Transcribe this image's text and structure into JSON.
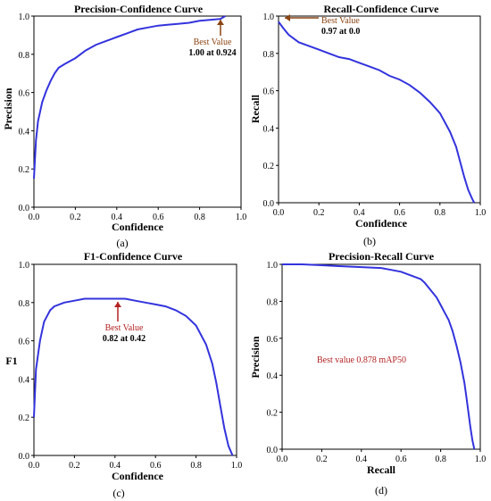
{
  "chart_data": [
    {
      "type": "line",
      "title": "Precision-Confidence Curve",
      "xlabel": "Confidence",
      "ylabel": "Precision",
      "panel_label": "(a)",
      "xlim": [
        0,
        1
      ],
      "ylim": [
        0,
        1
      ],
      "xticks": [
        "0.0",
        "0.2",
        "0.4",
        "0.6",
        "0.8",
        "1.0"
      ],
      "yticks": [
        "0.0",
        "0.2",
        "0.4",
        "0.6",
        "0.8",
        "1.0"
      ],
      "grid": false,
      "series": [
        {
          "color": "#3333dd",
          "x": [
            0.0,
            0.01,
            0.02,
            0.04,
            0.06,
            0.08,
            0.1,
            0.12,
            0.15,
            0.2,
            0.25,
            0.3,
            0.35,
            0.4,
            0.45,
            0.5,
            0.55,
            0.6,
            0.65,
            0.7,
            0.75,
            0.8,
            0.85,
            0.9,
            0.924
          ],
          "y": [
            0.15,
            0.35,
            0.45,
            0.55,
            0.61,
            0.66,
            0.7,
            0.73,
            0.75,
            0.78,
            0.82,
            0.85,
            0.87,
            0.89,
            0.91,
            0.93,
            0.94,
            0.95,
            0.955,
            0.96,
            0.965,
            0.975,
            0.98,
            0.985,
            1.0
          ]
        }
      ],
      "annotation": {
        "line1": "Best Value",
        "line2": "1.00 at 0.924",
        "x": 0.924,
        "y": 1.0,
        "color": "#8b4513"
      }
    },
    {
      "type": "line",
      "title": "Recall-Confidence Curve",
      "xlabel": "Confidence",
      "ylabel": "Recall",
      "panel_label": "(b)",
      "xlim": [
        0,
        1
      ],
      "ylim": [
        0,
        1
      ],
      "xticks": [
        "0.0",
        "0.2",
        "0.4",
        "0.6",
        "0.8",
        "1.0"
      ],
      "yticks": [
        "0.0",
        "0.2",
        "0.4",
        "0.6",
        "0.8",
        "1.0"
      ],
      "grid": false,
      "series": [
        {
          "color": "#3333dd",
          "x": [
            0.0,
            0.02,
            0.05,
            0.1,
            0.15,
            0.2,
            0.25,
            0.3,
            0.35,
            0.4,
            0.45,
            0.5,
            0.55,
            0.6,
            0.65,
            0.7,
            0.75,
            0.8,
            0.85,
            0.88,
            0.9,
            0.92,
            0.94,
            0.96,
            0.97
          ],
          "y": [
            0.97,
            0.94,
            0.9,
            0.86,
            0.84,
            0.82,
            0.8,
            0.78,
            0.77,
            0.75,
            0.73,
            0.71,
            0.68,
            0.66,
            0.63,
            0.59,
            0.54,
            0.48,
            0.38,
            0.3,
            0.22,
            0.14,
            0.07,
            0.02,
            0.0
          ]
        }
      ],
      "annotation": {
        "line1": "Best Value",
        "line2": "0.97 at 0.0",
        "x": 0.0,
        "y": 0.97,
        "color": "#8b4513"
      }
    },
    {
      "type": "line",
      "title": "F1-Confidence Curve",
      "xlabel": "Confidence",
      "ylabel": "F1",
      "panel_label": "(c)",
      "xlim": [
        0,
        1
      ],
      "ylim": [
        0,
        1
      ],
      "xticks": [
        "0.0",
        "0.2",
        "0.4",
        "0.6",
        "0.8",
        "1.0"
      ],
      "yticks": [
        "0.0",
        "0.2",
        "0.4",
        "0.6",
        "0.8",
        "1.0"
      ],
      "grid": false,
      "series": [
        {
          "color": "#3333dd",
          "x": [
            0.0,
            0.01,
            0.03,
            0.05,
            0.08,
            0.1,
            0.15,
            0.2,
            0.25,
            0.3,
            0.35,
            0.4,
            0.45,
            0.5,
            0.55,
            0.6,
            0.65,
            0.7,
            0.75,
            0.8,
            0.85,
            0.88,
            0.9,
            0.92,
            0.94,
            0.96,
            0.98
          ],
          "y": [
            0.2,
            0.45,
            0.6,
            0.7,
            0.76,
            0.78,
            0.8,
            0.81,
            0.82,
            0.82,
            0.82,
            0.82,
            0.82,
            0.81,
            0.8,
            0.79,
            0.78,
            0.76,
            0.73,
            0.68,
            0.58,
            0.48,
            0.38,
            0.26,
            0.14,
            0.05,
            0.0
          ]
        }
      ],
      "annotation": {
        "line1": "Best Value",
        "line2": "0.82 at 0.42",
        "x": 0.42,
        "y": 0.82,
        "color": "#b22222"
      }
    },
    {
      "type": "line",
      "title": "Precision-Recall Curve",
      "xlabel": "Recall",
      "ylabel": "Precision",
      "panel_label": "(d)",
      "xlim": [
        0,
        1
      ],
      "ylim": [
        0,
        1
      ],
      "xticks": [
        "0.0",
        "0.2",
        "0.4",
        "0.6",
        "0.8",
        "1.0"
      ],
      "yticks": [
        "0.0",
        "0.2",
        "0.4",
        "0.6",
        "0.8",
        "1.0"
      ],
      "grid": false,
      "series": [
        {
          "color": "#3333dd",
          "x": [
            0.0,
            0.1,
            0.2,
            0.3,
            0.4,
            0.5,
            0.55,
            0.6,
            0.65,
            0.7,
            0.72,
            0.75,
            0.78,
            0.8,
            0.82,
            0.84,
            0.86,
            0.88,
            0.9,
            0.92,
            0.93,
            0.94,
            0.95,
            0.96,
            0.97
          ],
          "y": [
            1.0,
            1.0,
            0.995,
            0.99,
            0.985,
            0.98,
            0.97,
            0.96,
            0.94,
            0.92,
            0.9,
            0.86,
            0.82,
            0.78,
            0.74,
            0.7,
            0.64,
            0.56,
            0.47,
            0.36,
            0.28,
            0.2,
            0.12,
            0.05,
            0.0
          ]
        }
      ],
      "annotation": {
        "line1": "Best value 0.878 mAP50",
        "line2": "",
        "x": null,
        "y": null,
        "color": "#b22222"
      }
    }
  ]
}
